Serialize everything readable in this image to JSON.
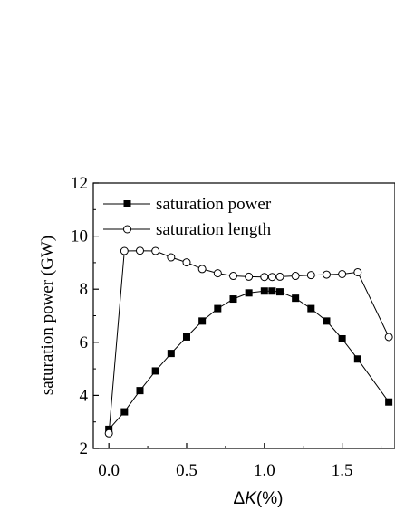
{
  "chart_data": {
    "type": "line",
    "title": "",
    "ylabel": "saturation power (GW)",
    "xlabel": {
      "prefix": "Δ",
      "italic": "K",
      "suffix": "(%)"
    },
    "xlim": [
      -0.1,
      1.84
    ],
    "ylim": [
      2,
      12
    ],
    "xticks": [
      0.0,
      0.5,
      1.0,
      1.5
    ],
    "xtick_labels": [
      "0.0",
      "0.5",
      "1.0",
      "1.5"
    ],
    "yticks": [
      2,
      4,
      6,
      8,
      10,
      12
    ],
    "ytick_labels": [
      "2",
      "4",
      "6",
      "8",
      "10",
      "12"
    ],
    "grid": false,
    "legend_position": "top-left",
    "series": [
      {
        "name": "saturation power",
        "marker": "filled-square",
        "color": "#000000",
        "x": [
          0.0,
          0.1,
          0.2,
          0.3,
          0.4,
          0.5,
          0.6,
          0.7,
          0.8,
          0.9,
          1.0,
          1.05,
          1.1,
          1.2,
          1.3,
          1.4,
          1.5,
          1.6,
          1.8
        ],
        "y": [
          2.72,
          3.38,
          4.18,
          4.92,
          5.58,
          6.2,
          6.8,
          7.27,
          7.63,
          7.86,
          7.93,
          7.93,
          7.9,
          7.66,
          7.27,
          6.8,
          6.13,
          5.37,
          3.75
        ]
      },
      {
        "name": "saturation length",
        "marker": "open-circle",
        "color": "#000000",
        "x": [
          0.0,
          0.1,
          0.2,
          0.3,
          0.4,
          0.5,
          0.6,
          0.7,
          0.8,
          0.9,
          1.0,
          1.05,
          1.1,
          1.2,
          1.3,
          1.4,
          1.5,
          1.6,
          1.8
        ],
        "y": [
          2.57,
          9.44,
          9.45,
          9.44,
          9.2,
          9.01,
          8.76,
          8.6,
          8.5,
          8.47,
          8.46,
          8.46,
          8.47,
          8.5,
          8.53,
          8.55,
          8.57,
          8.64,
          6.2
        ]
      }
    ]
  }
}
